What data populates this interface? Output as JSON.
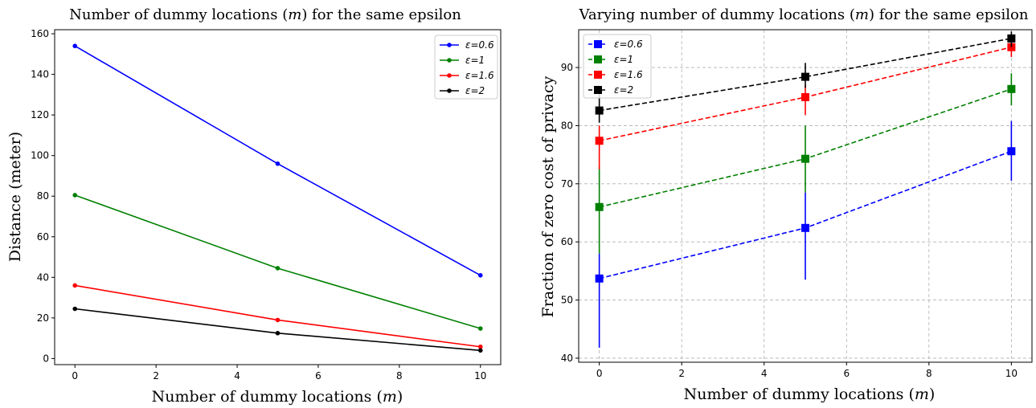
{
  "chart_data": [
    {
      "type": "line",
      "title": "Number of dummy locations (m) for the same epsilon",
      "xlabel": "Number of dummy locations (m)",
      "ylabel": "Distance (meter)",
      "xlim": [
        -0.5,
        10.5
      ],
      "ylim": [
        -3,
        162
      ],
      "xticks": [
        0,
        2,
        4,
        6,
        8,
        10
      ],
      "yticks": [
        0,
        20,
        40,
        60,
        80,
        100,
        120,
        140,
        160
      ],
      "grid": false,
      "legend_position": "top-right",
      "x": [
        0,
        5,
        10
      ],
      "series": [
        {
          "name": "ε=0.6",
          "color": "#0000ff",
          "values": [
            154,
            96,
            41
          ]
        },
        {
          "name": "ε=1",
          "color": "#008000",
          "values": [
            80.5,
            44.5,
            14.8
          ]
        },
        {
          "name": "ε=1.6",
          "color": "#ff0000",
          "values": [
            36,
            19,
            5.8
          ]
        },
        {
          "name": "ε=2",
          "color": "#000000",
          "values": [
            24.5,
            12.5,
            4
          ]
        }
      ]
    },
    {
      "type": "line",
      "title": "Varying number of dummy locations (m) for the same epsilon",
      "xlabel": "Number of dummy locations (m)",
      "ylabel": "Fraction of zero cost of privacy",
      "xlim": [
        -0.5,
        10.5
      ],
      "ylim": [
        39.3,
        96.5
      ],
      "xticks": [
        0,
        2,
        4,
        6,
        8,
        10
      ],
      "yticks": [
        40,
        50,
        60,
        70,
        80,
        90
      ],
      "grid": true,
      "legend_position": "top-left",
      "x": [
        0,
        5,
        10
      ],
      "series": [
        {
          "name": "ε=0.6",
          "color": "#0000ff",
          "values": [
            53.7,
            62.4,
            75.6
          ],
          "yerr_low": [
            41.8,
            53.5,
            70.5
          ],
          "yerr_high": [
            58,
            68.5,
            80.8
          ]
        },
        {
          "name": "ε=1",
          "color": "#008000",
          "values": [
            66,
            74.3,
            86.3
          ],
          "yerr_low": [
            58,
            68.5,
            83.5
          ],
          "yerr_high": [
            73,
            80,
            89
          ]
        },
        {
          "name": "ε=1.6",
          "color": "#ff0000",
          "values": [
            77.4,
            84.9,
            93.5
          ],
          "yerr_low": [
            72.5,
            81.8,
            91.8
          ],
          "yerr_high": [
            80,
            87,
            95.5
          ]
        },
        {
          "name": "ε=2",
          "color": "#000000",
          "values": [
            82.6,
            88.4,
            95
          ],
          "yerr_low": [
            80.5,
            86.5,
            93.5
          ],
          "yerr_high": [
            86.5,
            90.8,
            96.2
          ]
        }
      ]
    }
  ]
}
